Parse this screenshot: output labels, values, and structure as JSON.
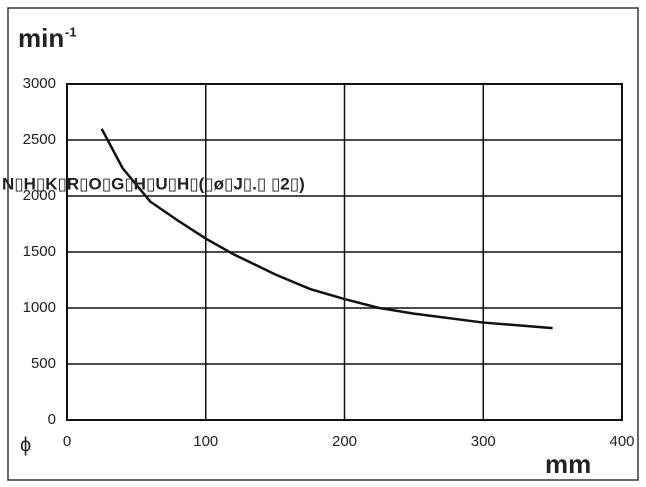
{
  "chart_data": {
    "type": "line",
    "y_label": "min",
    "y_label_sup": "-1",
    "x_label": "mm",
    "corner_symbol": "ϕ",
    "annotation": "N▯H▯K▯R▯O▯G▯H▯U▯H▯(▯ø▯J▯.▯ ▯2▯)",
    "x": [
      25,
      40,
      60,
      80,
      100,
      120,
      150,
      175,
      200,
      225,
      250,
      300,
      350
    ],
    "series": [
      {
        "color": "#111111",
        "values": [
          2600,
          2250,
          1950,
          1780,
          1620,
          1480,
          1300,
          1170,
          1080,
          1000,
          950,
          870,
          820
        ]
      }
    ],
    "xlim": [
      0,
      400
    ],
    "xticks": [
      0,
      100,
      200,
      300,
      400
    ],
    "ylim": [
      0,
      3000
    ],
    "yticks": [
      0,
      500,
      1000,
      1500,
      2000,
      2500,
      3000
    ],
    "grid": true
  }
}
